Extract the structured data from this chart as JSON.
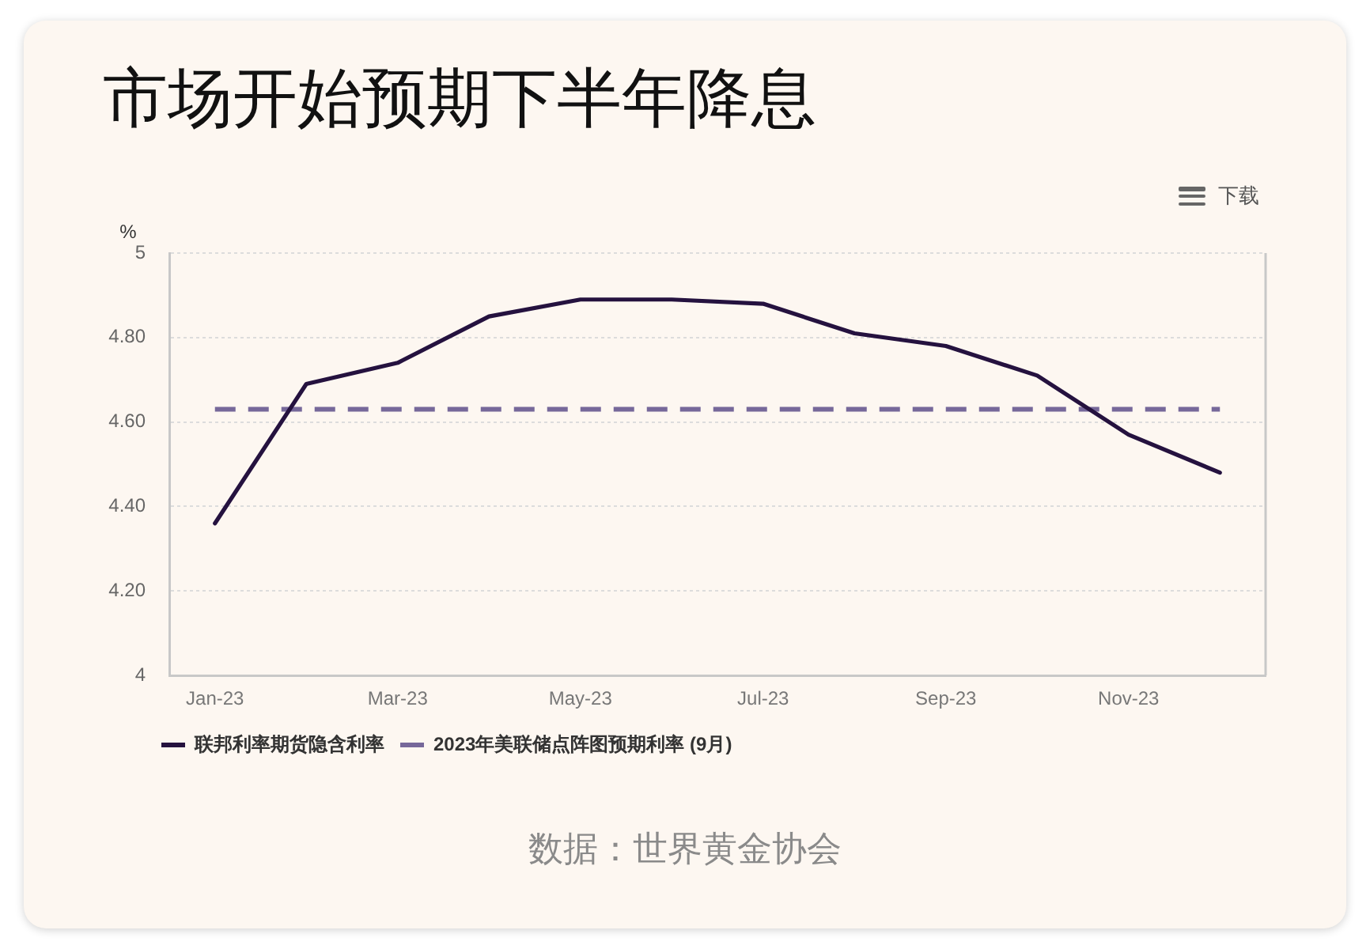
{
  "chart_data": {
    "type": "line",
    "title": "市场开始预期下半年降息",
    "ylabel": "%",
    "annotations": [
      "下载",
      "数据：世界黄金协会"
    ],
    "categories": [
      "Jan-23",
      null,
      "Mar-23",
      null,
      "May-23",
      null,
      "Jul-23",
      null,
      "Sep-23",
      null,
      "Nov-23",
      null
    ],
    "series": [
      {
        "name": "联邦利率期货隐含利率",
        "color": "#25123f",
        "values": [
          4.36,
          4.69,
          4.74,
          4.85,
          4.89,
          4.89,
          4.88,
          4.81,
          4.78,
          4.71,
          4.57,
          4.48
        ]
      },
      {
        "name": "2023年美联储点阵图预期利率 (9月)",
        "color": "#76689a",
        "line_style": "dashed",
        "values": [
          4.63,
          4.63,
          4.63,
          4.63,
          4.63,
          4.63,
          4.63,
          4.63,
          4.63,
          4.63,
          4.63,
          4.63
        ]
      }
    ],
    "ylim": [
      4,
      5
    ],
    "yticks": [
      4,
      {
        "value": 4.2,
        "label": "4.20"
      },
      {
        "value": 4.4,
        "label": "4.40"
      },
      {
        "value": 4.6,
        "label": "4.60"
      },
      {
        "value": 4.8,
        "label": "4.80"
      },
      5
    ],
    "grid": "y",
    "legend": "bottom left"
  }
}
